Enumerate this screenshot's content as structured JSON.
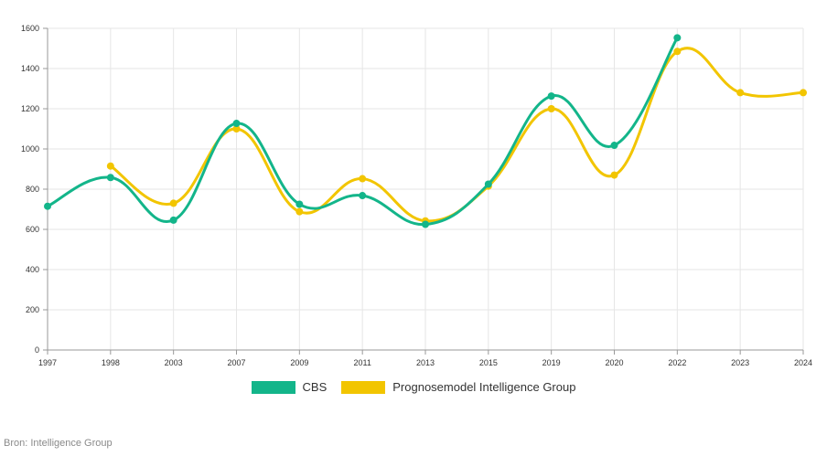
{
  "chart_data": {
    "type": "line",
    "categories": [
      "1997",
      "1998",
      "2003",
      "2007",
      "2009",
      "2011",
      "2013",
      "2015",
      "2019",
      "2020",
      "2022",
      "2023",
      "2024"
    ],
    "series": [
      {
        "name": "CBS",
        "color": "#13b58a",
        "values": [
          715,
          858,
          646,
          1127,
          725,
          768,
          625,
          825,
          1263,
          1018,
          1553,
          null,
          null
        ]
      },
      {
        "name": "Prognosemodel Intelligence Group",
        "color": "#f2c500",
        "values": [
          null,
          915,
          730,
          1100,
          688,
          852,
          642,
          815,
          1200,
          870,
          1485,
          1280,
          1280
        ]
      }
    ],
    "ylim": [
      0,
      1600
    ],
    "yticks": [
      0,
      200,
      400,
      600,
      800,
      1000,
      1200,
      1400,
      1600
    ],
    "grid": true,
    "legend_position": "bottom",
    "title": "",
    "xlabel": "",
    "ylabel": ""
  },
  "source_text": "Bron: Intelligence Group"
}
